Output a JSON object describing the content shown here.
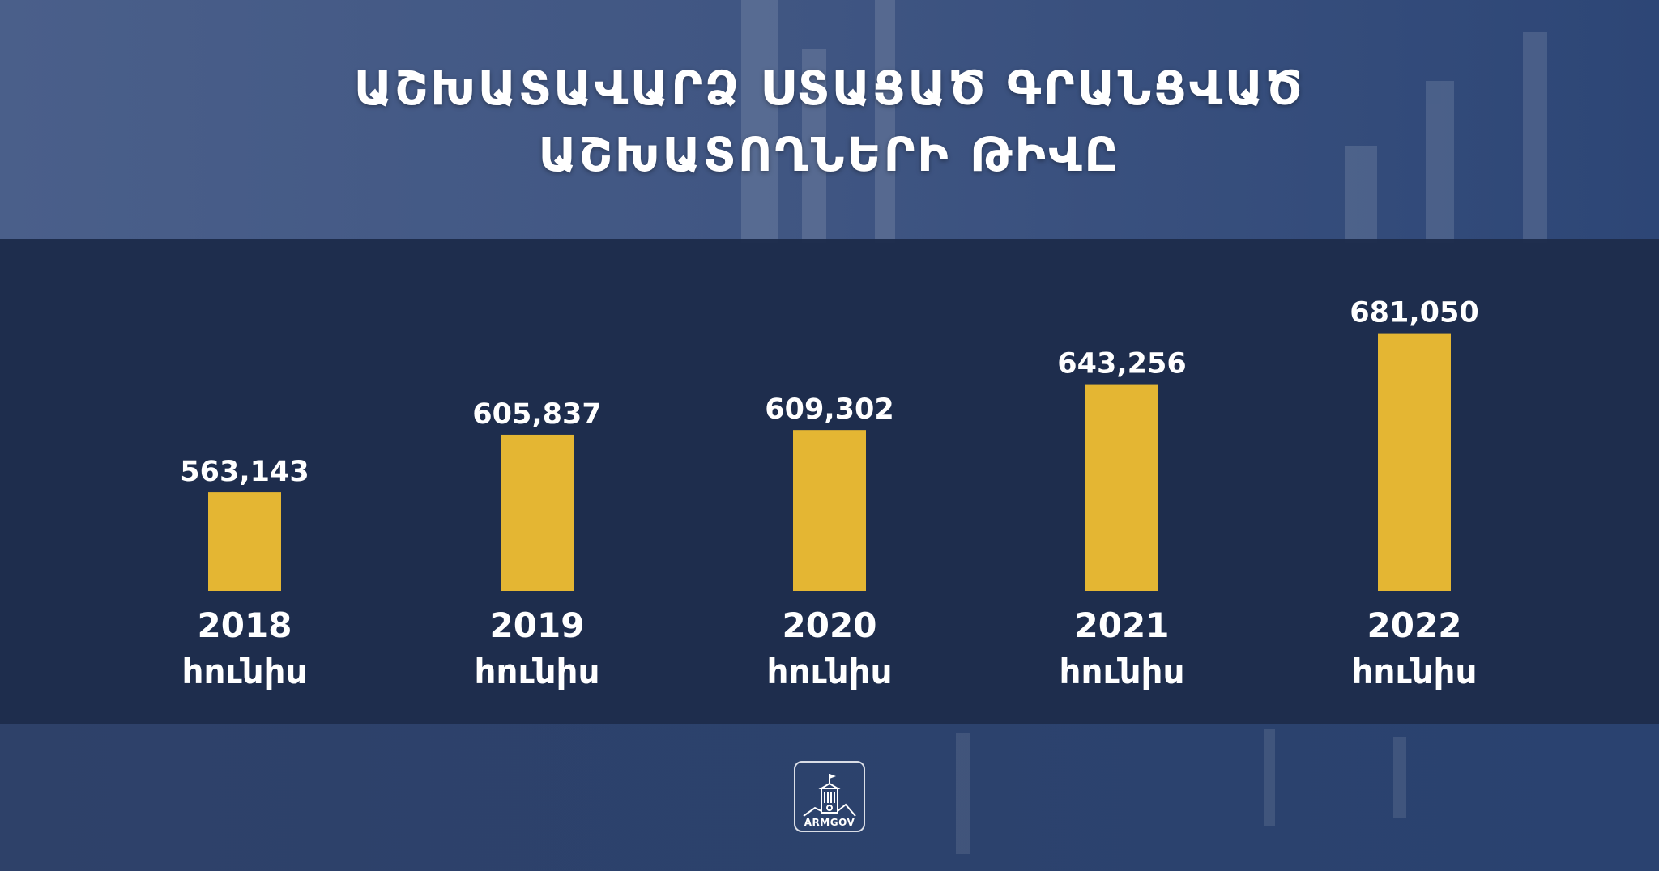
{
  "title": {
    "line1": "ԱՇԽԱՏԱՎԱՐՁ ՍՏԱՑԱԾ ԳՐԱՆՑՎԱԾ",
    "line2": "ԱՇԽԱՏՈՂՆԵՐԻ ԹԻՎԸ"
  },
  "colors": {
    "bar": "#E4B633",
    "text": "#FFFFFF",
    "band": "#1E2D4D",
    "background": "#2B3F67"
  },
  "logo": {
    "text": "ARMGOV",
    "icon": "government-building-icon"
  },
  "chart_data": {
    "type": "bar",
    "title": "ԱՇԽԱՏԱՎԱՐՁ ՍՏԱՑԱԾ ԳՐԱՆՑՎԱԾ ԱՇԽԱՏՈՂՆԵՐԻ ԹԻՎԸ",
    "categories": [
      "2018",
      "2019",
      "2020",
      "2021",
      "2022"
    ],
    "category_sublabel": "հունիս",
    "values": [
      563143,
      605837,
      609302,
      643256,
      681050
    ],
    "value_labels": [
      "563,143",
      "605,837",
      "609,302",
      "643,256",
      "681,050"
    ],
    "xlabel": "",
    "ylabel": "",
    "ylim": [
      490000,
      700000
    ],
    "grid": false,
    "legend": "none"
  }
}
